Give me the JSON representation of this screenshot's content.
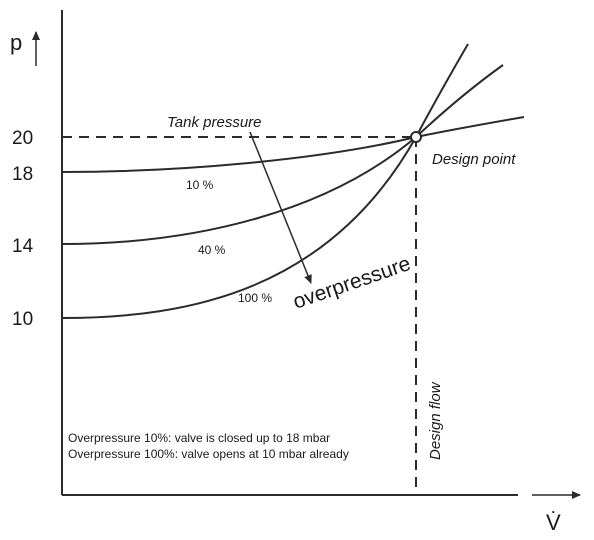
{
  "axes": {
    "y_label": "p",
    "x_label": "V̇",
    "y_ticks": [
      "20",
      "18",
      "14",
      "10"
    ]
  },
  "labels": {
    "tank_pressure": "Tank pressure",
    "design_point": "Design point",
    "overpressure": "overpressure",
    "design_flow": "Design flow",
    "curve_10": "10 %",
    "curve_40": "40 %",
    "curve_100": "100 %"
  },
  "notes": [
    "Overpressure 10%: valve is closed up to 18 mbar",
    "Overpressure 100%: valve opens at 10 mbar already"
  ],
  "curves": [
    {
      "label": "10 %",
      "start_pressure": 18
    },
    {
      "label": "40 %",
      "start_pressure": 14
    },
    {
      "label": "100 %",
      "start_pressure": 10
    }
  ],
  "design_point_pressure": 20
}
